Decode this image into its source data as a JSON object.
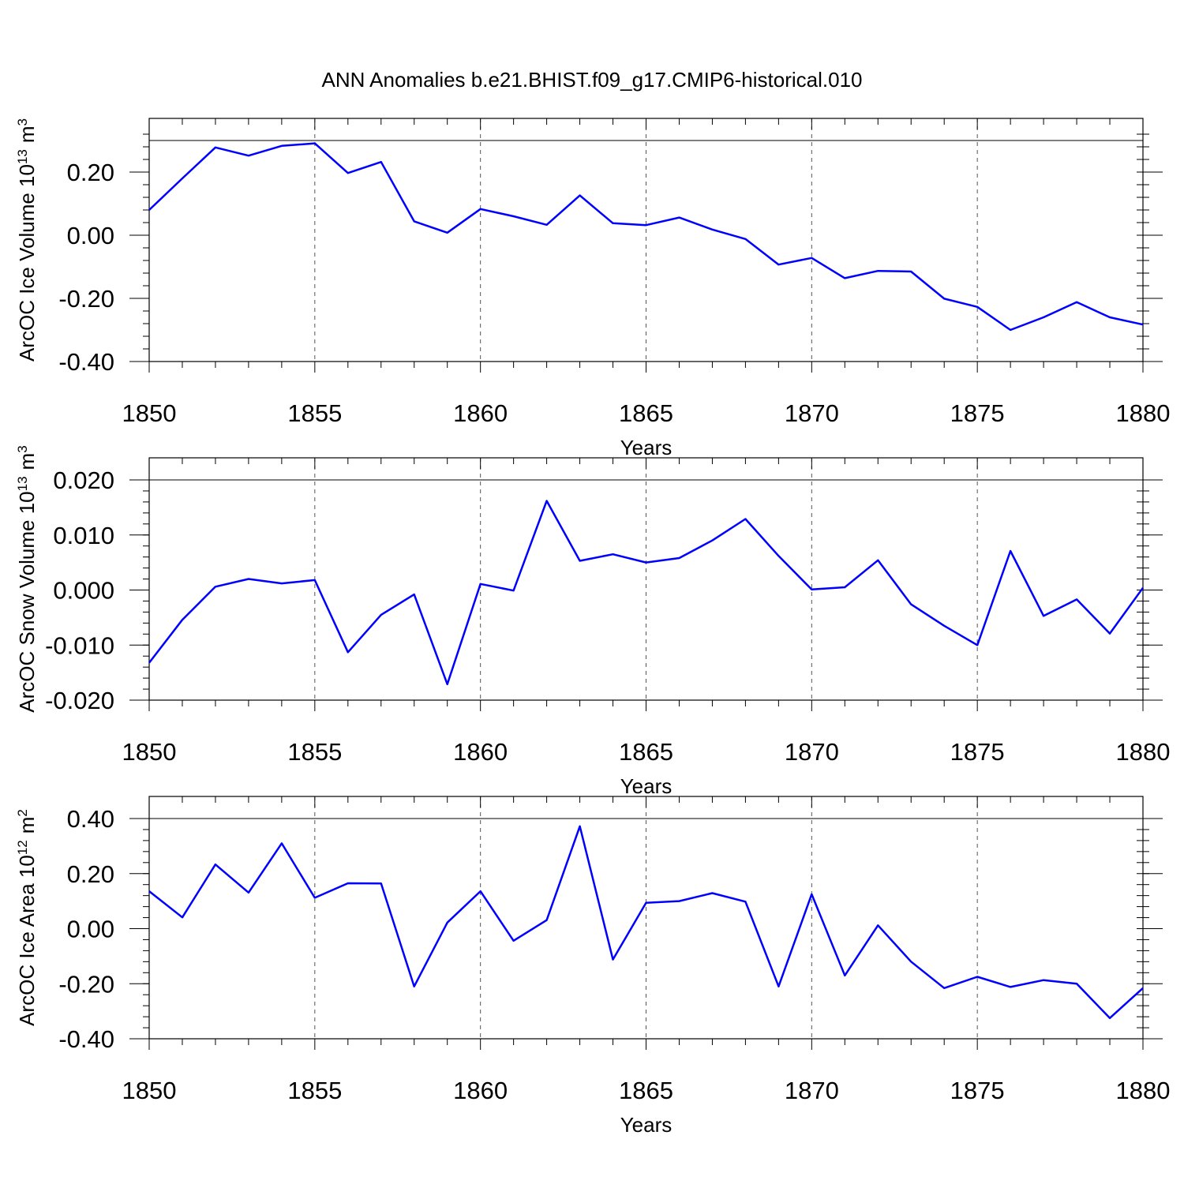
{
  "title": "ANN Anomalies b.e21.BHIST.f09_g17.CMIP6-historical.010",
  "line_color": "#0000ff",
  "chart_data": [
    {
      "type": "line",
      "ylabel_main": "ArcOC Ice Volume 10",
      "ylabel_exp": "13",
      "ylabel_unit": "m",
      "ylabel_unit_exp": "3",
      "xlabel": "Years",
      "xlim": [
        1850,
        1880
      ],
      "ylim": [
        -0.4,
        0.3
      ],
      "major_ticks": [
        -0.4,
        -0.2,
        0.0,
        0.2
      ],
      "tick_labels": [
        "-0.40",
        "-0.20",
        "0.00",
        "0.20"
      ],
      "minor_step": 0.04,
      "x_ticks": [
        1850,
        1855,
        1860,
        1865,
        1870,
        1875,
        1880
      ],
      "x_tick_labels": [
        "1850",
        "1855",
        "1860",
        "1865",
        "1870",
        "1875",
        "1880"
      ],
      "zero_line": true,
      "grid": "dashed vertical at major x ticks",
      "series": [
        {
          "x": [
            1850,
            1851,
            1852,
            1853,
            1854,
            1855,
            1856,
            1857,
            1858,
            1859,
            1860,
            1861,
            1862,
            1863,
            1864,
            1865,
            1866,
            1867,
            1868,
            1869,
            1870,
            1871,
            1872,
            1873,
            1874,
            1875,
            1876,
            1877,
            1878,
            1879,
            1880
          ],
          "values": [
            0.08,
            0.18,
            0.278,
            0.252,
            0.283,
            0.291,
            0.197,
            0.232,
            0.044,
            0.008,
            0.083,
            0.06,
            0.033,
            0.126,
            0.038,
            0.032,
            0.056,
            0.018,
            -0.012,
            -0.093,
            -0.072,
            -0.136,
            -0.113,
            -0.115,
            -0.201,
            -0.227,
            -0.3,
            -0.26,
            -0.212,
            -0.26,
            -0.283
          ]
        }
      ]
    },
    {
      "type": "line",
      "ylabel_main": "ArcOC Snow Volume 10",
      "ylabel_exp": "13",
      "ylabel_unit": "m",
      "ylabel_unit_exp": "3",
      "xlabel": "Years",
      "xlim": [
        1850,
        1880
      ],
      "ylim": [
        -0.02,
        0.02
      ],
      "major_ticks": [
        -0.02,
        -0.01,
        0.0,
        0.01,
        0.02
      ],
      "tick_labels": [
        "-0.020",
        "-0.010",
        "0.000",
        "0.010",
        "0.020"
      ],
      "minor_step": 0.002,
      "x_ticks": [
        1850,
        1855,
        1860,
        1865,
        1870,
        1875,
        1880
      ],
      "x_tick_labels": [
        "1850",
        "1855",
        "1860",
        "1865",
        "1870",
        "1875",
        "1880"
      ],
      "zero_line": true,
      "grid": "dashed vertical at major x ticks",
      "series": [
        {
          "x": [
            1850,
            1851,
            1852,
            1853,
            1854,
            1855,
            1856,
            1857,
            1858,
            1859,
            1860,
            1861,
            1862,
            1863,
            1864,
            1865,
            1866,
            1867,
            1868,
            1869,
            1870,
            1871,
            1872,
            1873,
            1874,
            1875,
            1876,
            1877,
            1878,
            1879,
            1880
          ],
          "values": [
            -0.0132,
            -0.0054,
            0.0006,
            0.002,
            0.0012,
            0.0018,
            -0.0113,
            -0.0045,
            -0.0008,
            -0.0171,
            0.0011,
            -0.0001,
            0.0162,
            0.0053,
            0.0065,
            0.005,
            0.0058,
            0.009,
            0.0129,
            0.0062,
            0.0001,
            0.0005,
            0.0054,
            -0.0026,
            -0.0065,
            -0.01,
            0.0071,
            -0.0047,
            -0.0017,
            -0.0079,
            0.0004
          ]
        }
      ]
    },
    {
      "type": "line",
      "ylabel_main": "ArcOC Ice Area 10",
      "ylabel_exp": "12",
      "ylabel_unit": "m",
      "ylabel_unit_exp": "2",
      "xlabel": "Years",
      "xlim": [
        1850,
        1880
      ],
      "ylim": [
        -0.4,
        0.4
      ],
      "major_ticks": [
        -0.4,
        -0.2,
        0.0,
        0.2,
        0.4
      ],
      "tick_labels": [
        "-0.40",
        "-0.20",
        "0.00",
        "0.20",
        "0.40"
      ],
      "minor_step": 0.04,
      "x_ticks": [
        1850,
        1855,
        1860,
        1865,
        1870,
        1875,
        1880
      ],
      "x_tick_labels": [
        "1850",
        "1855",
        "1860",
        "1865",
        "1870",
        "1875",
        "1880"
      ],
      "zero_line": true,
      "grid": "dashed vertical at major x ticks",
      "series": [
        {
          "x": [
            1850,
            1851,
            1852,
            1853,
            1854,
            1855,
            1856,
            1857,
            1858,
            1859,
            1860,
            1861,
            1862,
            1863,
            1864,
            1865,
            1866,
            1867,
            1868,
            1869,
            1870,
            1871,
            1872,
            1873,
            1874,
            1875,
            1876,
            1877,
            1878,
            1879,
            1880
          ],
          "values": [
            0.136,
            0.041,
            0.233,
            0.131,
            0.31,
            0.112,
            0.165,
            0.164,
            -0.21,
            0.022,
            0.136,
            -0.044,
            0.031,
            0.372,
            -0.112,
            0.094,
            0.1,
            0.129,
            0.098,
            -0.21,
            0.125,
            -0.17,
            0.012,
            -0.12,
            -0.216,
            -0.175,
            -0.212,
            -0.187,
            -0.2,
            -0.325,
            -0.216
          ]
        }
      ]
    }
  ]
}
